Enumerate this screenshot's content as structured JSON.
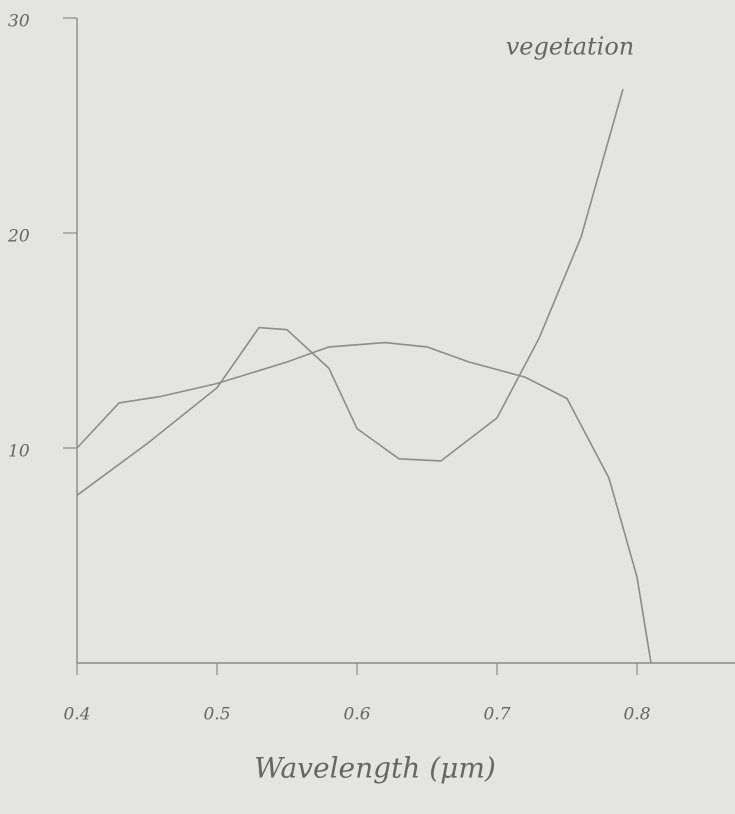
{
  "chart_data": {
    "type": "line",
    "x_label": "Wavelength (μm)",
    "xlim": [
      0.4,
      0.87
    ],
    "xticks": [
      0.4,
      0.5,
      0.6,
      0.7,
      0.8
    ],
    "ylim": [
      0,
      30
    ],
    "yticks": [
      10,
      20,
      30
    ],
    "grid": false,
    "series": [
      {
        "name": "vegetation",
        "color": "#8c8c8c",
        "x": [
          0.4,
          0.45,
          0.5,
          0.53,
          0.55,
          0.58,
          0.6,
          0.63,
          0.66,
          0.7,
          0.73,
          0.76,
          0.79
        ],
        "values": [
          7.8,
          10.2,
          12.8,
          15.6,
          15.5,
          13.7,
          10.9,
          9.5,
          9.4,
          11.4,
          15.1,
          19.8,
          26.7
        ]
      },
      {
        "color": "#8c8c8c",
        "x": [
          0.4,
          0.43,
          0.46,
          0.5,
          0.55,
          0.58,
          0.62,
          0.65,
          0.68,
          0.72,
          0.75,
          0.78,
          0.8,
          0.81
        ],
        "values": [
          10,
          12.1,
          12.4,
          13.0,
          14.0,
          14.7,
          14.9,
          14.7,
          14.0,
          13.3,
          12.3,
          8.6,
          4.0,
          0
        ]
      }
    ]
  }
}
